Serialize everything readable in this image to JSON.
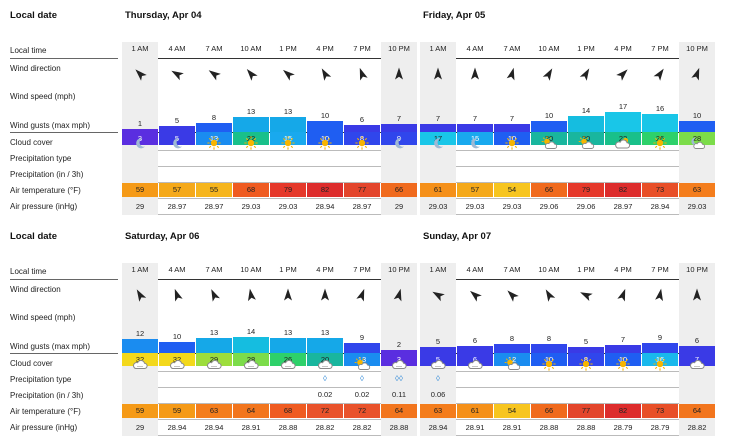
{
  "labels": {
    "local_date": "Local date",
    "local_time": "Local time",
    "wind_direction": "Wind direction",
    "wind_speed": "Wind speed (mph)",
    "wind_gusts": "Wind gusts (max mph)",
    "cloud_cover": "Cloud cover",
    "precip_type": "Precipitation type",
    "precip_amount": "Precipitation (in / 3h)",
    "air_temp": "Air temperature (°F)",
    "air_pressure": "Air pressure (inHg)"
  },
  "colors": {
    "night_column": "#eeeeee",
    "precip_drop": "#3b8fd9"
  },
  "days": [
    {
      "title": "Thursday, Apr 04",
      "hours": [
        {
          "time": "1 AM",
          "night": true,
          "dir_deg": 135,
          "speed": "1",
          "speed_color": "#5a2ee0",
          "gust": "3",
          "gust_color": "#5a2ee0",
          "gust_text": "#ffffff",
          "icon": "moon",
          "drops": "",
          "precip": "",
          "temp": "59",
          "temp_color": "#f59a17",
          "pressure": "29"
        },
        {
          "time": "4 AM",
          "night": false,
          "dir_deg": 120,
          "speed": "5",
          "speed_color": "#3a3ae6",
          "gust": "5",
          "gust_color": "#3a3ae6",
          "gust_text": "#ffffff",
          "icon": "moon",
          "drops": "",
          "precip": "",
          "temp": "57",
          "temp_color": "#f5a91a",
          "pressure": "28.97"
        },
        {
          "time": "7 AM",
          "night": false,
          "dir_deg": 125,
          "speed": "8",
          "speed_color": "#1f5ef2",
          "gust": "13",
          "gust_color": "#1a8cf0",
          "gust_text": "#ffffff",
          "icon": "sun",
          "drops": "",
          "precip": "",
          "temp": "55",
          "temp_color": "#f6b51d",
          "pressure": "28.97"
        },
        {
          "time": "10 AM",
          "night": false,
          "dir_deg": 140,
          "speed": "13",
          "speed_color": "#15a8e8",
          "gust": "22",
          "gust_color": "#19c08a",
          "gust_text": "#222222",
          "icon": "sun",
          "drops": "",
          "precip": "",
          "temp": "68",
          "temp_color": "#ef5b21",
          "pressure": "29.03"
        },
        {
          "time": "1 PM",
          "night": false,
          "dir_deg": 130,
          "speed": "13",
          "speed_color": "#15a8e8",
          "gust": "15",
          "gust_color": "#19a9ee",
          "gust_text": "#ffffff",
          "icon": "sun",
          "drops": "",
          "precip": "",
          "temp": "79",
          "temp_color": "#e5382a",
          "pressure": "29.03"
        },
        {
          "time": "4 PM",
          "night": false,
          "dir_deg": 150,
          "speed": "10",
          "speed_color": "#1f5ef2",
          "gust": "10",
          "gust_color": "#1f5ef2",
          "gust_text": "#ffffff",
          "icon": "sun",
          "drops": "",
          "precip": "",
          "temp": "82",
          "temp_color": "#dd2c2c",
          "pressure": "28.94"
        },
        {
          "time": "7 PM",
          "night": false,
          "dir_deg": 160,
          "speed": "6",
          "speed_color": "#3a3ae6",
          "gust": "8",
          "gust_color": "#3046ec",
          "gust_text": "#ffffff",
          "icon": "sun",
          "drops": "",
          "precip": "",
          "temp": "77",
          "temp_color": "#e3452c",
          "pressure": "28.97"
        },
        {
          "time": "10 PM",
          "night": true,
          "dir_deg": 180,
          "speed": "7",
          "speed_color": "#3a3ae6",
          "gust": "9",
          "gust_color": "#3046ec",
          "gust_text": "#ffffff",
          "icon": "moon",
          "drops": "",
          "precip": "",
          "temp": "66",
          "temp_color": "#f06a1d",
          "pressure": "29"
        }
      ]
    },
    {
      "title": "Friday, Apr 05",
      "hours": [
        {
          "time": "1 AM",
          "night": true,
          "dir_deg": 180,
          "speed": "7",
          "speed_color": "#3a3ae6",
          "gust": "17",
          "gust_color": "#19c6e8",
          "gust_text": "#222222",
          "icon": "moon",
          "drops": "",
          "precip": "",
          "temp": "61",
          "temp_color": "#f59019",
          "pressure": "29.03"
        },
        {
          "time": "4 AM",
          "night": false,
          "dir_deg": 180,
          "speed": "7",
          "speed_color": "#3a3ae6",
          "gust": "15",
          "gust_color": "#19a9ee",
          "gust_text": "#ffffff",
          "icon": "moon",
          "drops": "",
          "precip": "",
          "temp": "57",
          "temp_color": "#f5a91a",
          "pressure": "29.03"
        },
        {
          "time": "7 AM",
          "night": false,
          "dir_deg": 195,
          "speed": "7",
          "speed_color": "#3a3ae6",
          "gust": "10",
          "gust_color": "#1f5ef2",
          "gust_text": "#ffffff",
          "icon": "sun",
          "drops": "",
          "precip": "",
          "temp": "54",
          "temp_color": "#f7c51f",
          "pressure": "29.03"
        },
        {
          "time": "10 AM",
          "night": false,
          "dir_deg": 210,
          "speed": "10",
          "speed_color": "#1f5ef2",
          "gust": "20",
          "gust_color": "#19b69e",
          "gust_text": "#222222",
          "icon": "partly",
          "drops": "",
          "precip": "",
          "temp": "66",
          "temp_color": "#f06a1d",
          "pressure": "29.06"
        },
        {
          "time": "1 PM",
          "night": false,
          "dir_deg": 210,
          "speed": "14",
          "speed_color": "#15bde0",
          "gust": "20",
          "gust_color": "#19b69e",
          "gust_text": "#222222",
          "icon": "partly",
          "drops": "",
          "precip": "",
          "temp": "79",
          "temp_color": "#e5382a",
          "pressure": "29.06"
        },
        {
          "time": "4 PM",
          "night": false,
          "dir_deg": 225,
          "speed": "17",
          "speed_color": "#19c6e8",
          "gust": "22",
          "gust_color": "#19c08a",
          "gust_text": "#222222",
          "icon": "cloudy-sun",
          "drops": "",
          "precip": "",
          "temp": "82",
          "temp_color": "#dd2c2c",
          "pressure": "28.97"
        },
        {
          "time": "7 PM",
          "night": false,
          "dir_deg": 215,
          "speed": "16",
          "speed_color": "#19c6e8",
          "gust": "26",
          "gust_color": "#2ed16a",
          "gust_text": "#222222",
          "icon": "sun",
          "drops": "",
          "precip": "",
          "temp": "73",
          "temp_color": "#e84f28",
          "pressure": "28.94"
        },
        {
          "time": "10 PM",
          "night": true,
          "dir_deg": 200,
          "speed": "10",
          "speed_color": "#1f5ef2",
          "gust": "28",
          "gust_color": "#7cdc4a",
          "gust_text": "#222222",
          "icon": "moon-cloud",
          "drops": "",
          "precip": "",
          "temp": "63",
          "temp_color": "#f47d1c",
          "pressure": "29.03"
        }
      ]
    },
    {
      "title": "Saturday, Apr 06",
      "hours": [
        {
          "time": "1 AM",
          "night": true,
          "dir_deg": 150,
          "speed": "12",
          "speed_color": "#1a8cf0",
          "gust": "32",
          "gust_color": "#f3d81b",
          "gust_text": "#222222",
          "icon": "cloud",
          "drops": "",
          "precip": "",
          "temp": "59",
          "temp_color": "#f59a17",
          "pressure": "29"
        },
        {
          "time": "4 AM",
          "night": false,
          "dir_deg": 160,
          "speed": "10",
          "speed_color": "#1f5ef2",
          "gust": "32",
          "gust_color": "#f3d81b",
          "gust_text": "#222222",
          "icon": "cloud",
          "drops": "",
          "precip": "",
          "temp": "59",
          "temp_color": "#f59a17",
          "pressure": "28.94"
        },
        {
          "time": "7 AM",
          "night": false,
          "dir_deg": 155,
          "speed": "13",
          "speed_color": "#15a8e8",
          "gust": "29",
          "gust_color": "#9ddd3c",
          "gust_text": "#222222",
          "icon": "cloud",
          "drops": "",
          "precip": "",
          "temp": "63",
          "temp_color": "#f47d1c",
          "pressure": "28.94"
        },
        {
          "time": "10 AM",
          "night": false,
          "dir_deg": 170,
          "speed": "14",
          "speed_color": "#15bde0",
          "gust": "28",
          "gust_color": "#7cdc4a",
          "gust_text": "#222222",
          "icon": "cloud",
          "drops": "",
          "precip": "",
          "temp": "64",
          "temp_color": "#f2751d",
          "pressure": "28.91"
        },
        {
          "time": "1 PM",
          "night": false,
          "dir_deg": 180,
          "speed": "13",
          "speed_color": "#15a8e8",
          "gust": "26",
          "gust_color": "#2ed16a",
          "gust_text": "#222222",
          "icon": "cloud",
          "drops": "",
          "precip": "",
          "temp": "68",
          "temp_color": "#ef5b21",
          "pressure": "28.88"
        },
        {
          "time": "4 PM",
          "night": false,
          "dir_deg": 180,
          "speed": "13",
          "speed_color": "#15a8e8",
          "gust": "20",
          "gust_color": "#19b69e",
          "gust_text": "#222222",
          "icon": "cloud",
          "drops": "◊",
          "precip": "0.02",
          "temp": "72",
          "temp_color": "#e9522b",
          "pressure": "28.82"
        },
        {
          "time": "7 PM",
          "night": false,
          "dir_deg": 200,
          "speed": "9",
          "speed_color": "#3046ec",
          "gust": "13",
          "gust_color": "#1a8cf0",
          "gust_text": "#ffffff",
          "icon": "partly",
          "drops": "◊",
          "precip": "0.02",
          "temp": "72",
          "temp_color": "#e9522b",
          "pressure": "28.82"
        },
        {
          "time": "10 PM",
          "night": true,
          "dir_deg": 195,
          "speed": "2",
          "speed_color": "#5a2ee0",
          "gust": "3",
          "gust_color": "#5a2ee0",
          "gust_text": "#ffffff",
          "icon": "cloud",
          "drops": "◊◊",
          "precip": "0.11",
          "temp": "64",
          "temp_color": "#f2751d",
          "pressure": "28.88"
        }
      ]
    },
    {
      "title": "Sunday, Apr 07",
      "hours": [
        {
          "time": "1 AM",
          "night": true,
          "dir_deg": 120,
          "speed": "5",
          "speed_color": "#3a3ae6",
          "gust": "5",
          "gust_color": "#3a3ae6",
          "gust_text": "#ffffff",
          "icon": "cloud",
          "drops": "◊",
          "precip": "0.06",
          "temp": "63",
          "temp_color": "#f47d1c",
          "pressure": "28.94"
        },
        {
          "time": "4 AM",
          "night": false,
          "dir_deg": 130,
          "speed": "6",
          "speed_color": "#3a3ae6",
          "gust": "6",
          "gust_color": "#3a3ae6",
          "gust_text": "#ffffff",
          "icon": "cloud",
          "drops": "",
          "precip": "",
          "temp": "61",
          "temp_color": "#f59019",
          "pressure": "28.91"
        },
        {
          "time": "7 AM",
          "night": false,
          "dir_deg": 135,
          "speed": "8",
          "speed_color": "#3046ec",
          "gust": "12",
          "gust_color": "#1a8cf0",
          "gust_text": "#ffffff",
          "icon": "partly",
          "drops": "",
          "precip": "",
          "temp": "54",
          "temp_color": "#f7c51f",
          "pressure": "28.91"
        },
        {
          "time": "10 AM",
          "night": false,
          "dir_deg": 150,
          "speed": "8",
          "speed_color": "#3046ec",
          "gust": "10",
          "gust_color": "#1f5ef2",
          "gust_text": "#ffffff",
          "icon": "sun",
          "drops": "",
          "precip": "",
          "temp": "66",
          "temp_color": "#f06a1d",
          "pressure": "28.88"
        },
        {
          "time": "1 PM",
          "night": false,
          "dir_deg": 115,
          "speed": "5",
          "speed_color": "#3a3ae6",
          "gust": "8",
          "gust_color": "#3046ec",
          "gust_text": "#ffffff",
          "icon": "sun",
          "drops": "",
          "precip": "",
          "temp": "77",
          "temp_color": "#e3452c",
          "pressure": "28.88"
        },
        {
          "time": "4 PM",
          "night": false,
          "dir_deg": 200,
          "speed": "7",
          "speed_color": "#3a3ae6",
          "gust": "10",
          "gust_color": "#1f5ef2",
          "gust_text": "#ffffff",
          "icon": "sun",
          "drops": "",
          "precip": "",
          "temp": "82",
          "temp_color": "#dd2c2c",
          "pressure": "28.79"
        },
        {
          "time": "7 PM",
          "night": false,
          "dir_deg": 190,
          "speed": "9",
          "speed_color": "#3046ec",
          "gust": "16",
          "gust_color": "#19b8ec",
          "gust_text": "#ffffff",
          "icon": "sun",
          "drops": "",
          "precip": "",
          "temp": "73",
          "temp_color": "#e84f28",
          "pressure": "28.79"
        },
        {
          "time": "10 PM",
          "night": true,
          "dir_deg": 180,
          "speed": "6",
          "speed_color": "#3a3ae6",
          "gust": "7",
          "gust_color": "#3a3ae6",
          "gust_text": "#ffffff",
          "icon": "cloud",
          "drops": "",
          "precip": "",
          "temp": "64",
          "temp_color": "#f2751d",
          "pressure": "28.82"
        }
      ]
    }
  ]
}
